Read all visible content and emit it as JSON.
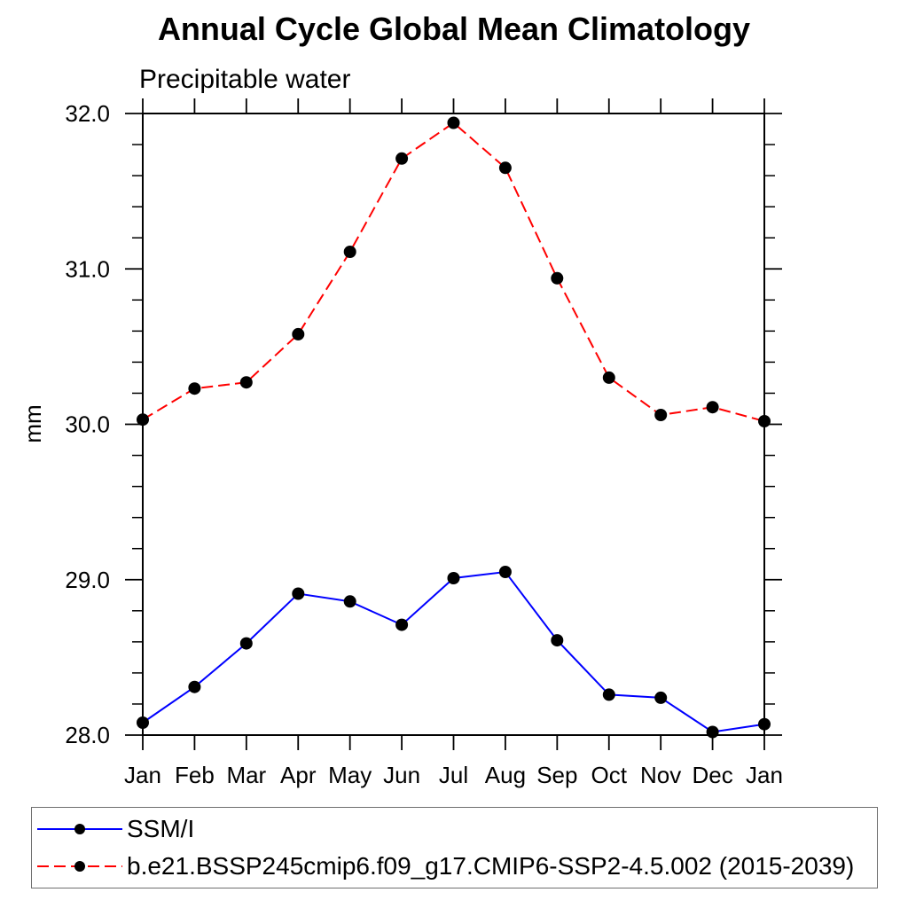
{
  "title": "Annual Cycle Global Mean Climatology",
  "chart_data": {
    "type": "line",
    "title": "Annual Cycle Global Mean Climatology",
    "subtitle": "Precipitable water",
    "ylabel": "mm",
    "xlabel": "",
    "categories": [
      "Jan",
      "Feb",
      "Mar",
      "Apr",
      "May",
      "Jun",
      "Jul",
      "Aug",
      "Sep",
      "Oct",
      "Nov",
      "Dec",
      "Jan"
    ],
    "ylim": [
      28.0,
      32.0
    ],
    "ytick_major": [
      28.0,
      29.0,
      30.0,
      31.0,
      32.0
    ],
    "ytick_labels": [
      "28.0",
      "29.0",
      "30.0",
      "31.0",
      "32.0"
    ],
    "ytick_minor_step": 0.2,
    "grid": false,
    "legend_position": "bottom",
    "series": [
      {
        "name": "SSM/I",
        "color": "#0000ff",
        "style": "solid",
        "marker": "circle",
        "marker_color": "#000000",
        "values": [
          28.08,
          28.31,
          28.59,
          28.91,
          28.86,
          28.71,
          29.01,
          29.05,
          28.61,
          28.26,
          28.24,
          28.02,
          28.07
        ]
      },
      {
        "name": "b.e21.BSSP245cmip6.f09_g17.CMIP6-SSP2-4.5.002 (2015-2039)",
        "color": "#ff0000",
        "style": "dashed",
        "marker": "circle",
        "marker_color": "#000000",
        "values": [
          30.03,
          30.23,
          30.27,
          30.58,
          31.11,
          31.71,
          31.94,
          31.65,
          30.94,
          30.3,
          30.06,
          30.11,
          30.02
        ]
      }
    ]
  }
}
